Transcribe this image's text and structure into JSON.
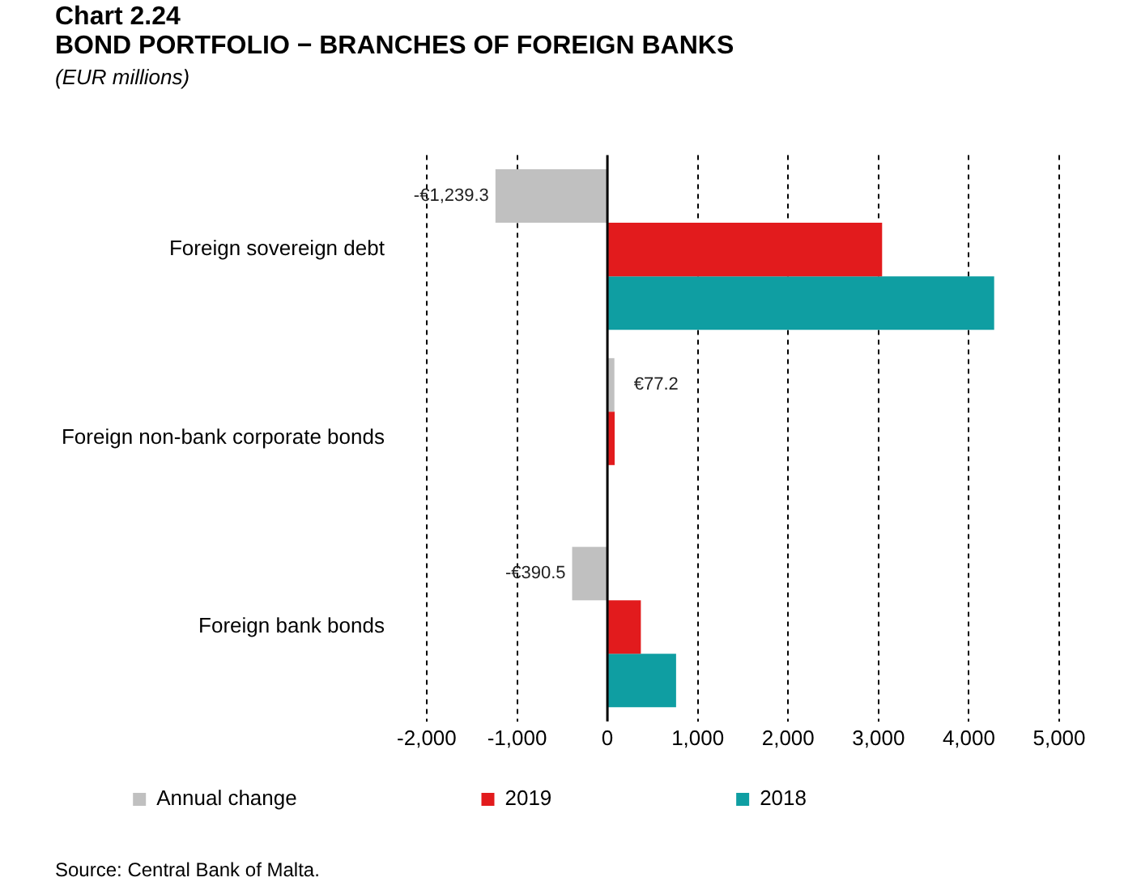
{
  "chart_data": {
    "type": "bar",
    "orientation": "horizontal",
    "title": "Chart 2.24",
    "subtitle": "BOND PORTFOLIO − BRANCHES OF FOREIGN BANKS",
    "ylabel": "(EUR millions)",
    "categories": [
      "Foreign sovereign debt",
      "Foreign non-bank corporate bonds",
      "Foreign bank bonds"
    ],
    "series": [
      {
        "name": "Annual change",
        "color": "#c0c0c0",
        "values": [
          -1239.3,
          77.2,
          -390.5
        ],
        "value_labels": [
          "-€1,239.3",
          "€77.2",
          "-€390.5"
        ]
      },
      {
        "name": "2019",
        "color": "#e21b1d",
        "values": [
          3040,
          80,
          370
        ]
      },
      {
        "name": "2018",
        "color": "#0f9ea2",
        "values": [
          4280,
          null,
          760
        ]
      }
    ],
    "xlim": [
      -2000,
      5000
    ],
    "xticks": [
      {
        "value": -2000,
        "label": "-2,000"
      },
      {
        "value": -1000,
        "label": "-1,000"
      },
      0,
      {
        "value": 1000,
        "label": "1,000"
      },
      {
        "value": 2000,
        "label": "2,000"
      },
      {
        "value": 3000,
        "label": "3,000"
      },
      {
        "value": 4000,
        "label": "4,000"
      },
      {
        "value": 5000,
        "label": "5,000"
      }
    ],
    "grid": "x",
    "legend": "bottom",
    "annotations": [
      "Source: Central Bank of Malta."
    ]
  }
}
